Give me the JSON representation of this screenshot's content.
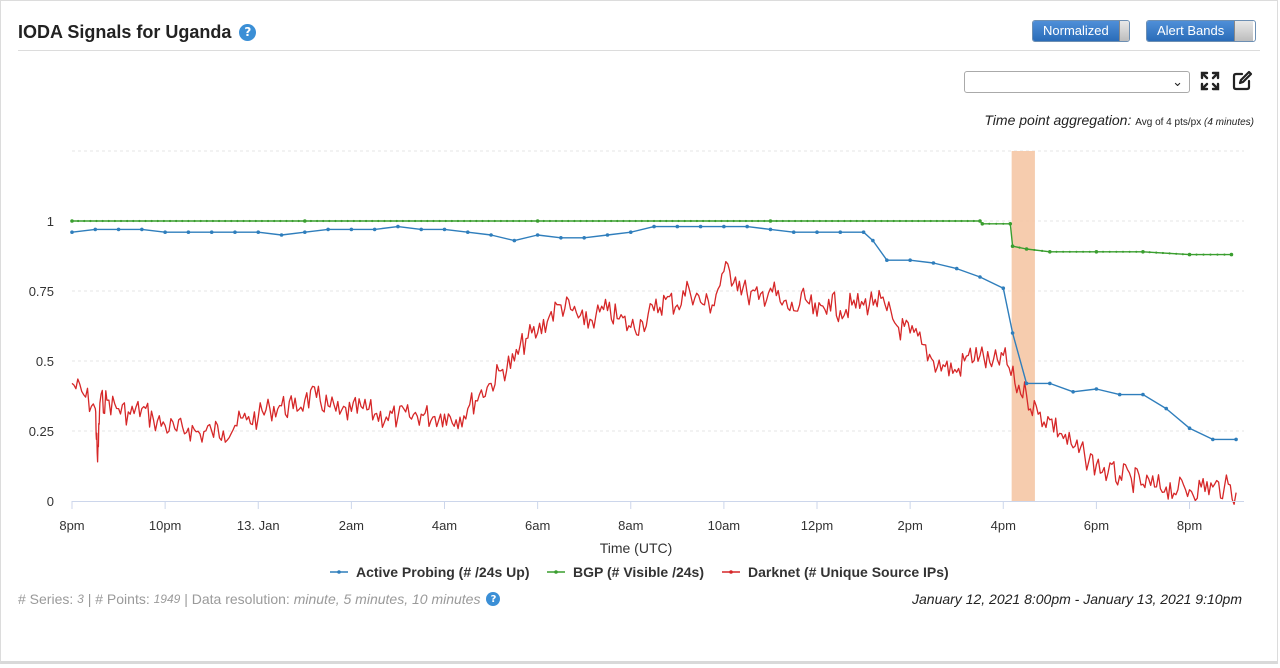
{
  "header": {
    "title": "IODA Signals for Uganda",
    "help_glyph": "?"
  },
  "toggles": {
    "normalized_label": "Normalized",
    "alert_bands_label": "Alert Bands"
  },
  "select": {
    "value": ""
  },
  "aggregation": {
    "label": "Time point aggregation:",
    "value_prefix": "Avg of 4 pts/px",
    "value_detail": "(4 minutes)"
  },
  "footer": {
    "series_label": "# Series:",
    "series_value": "3",
    "points_label": "# Points:",
    "points_value": "1949",
    "resolution_label": "Data resolution:",
    "resolution_value": "minute, 5 minutes, 10 minutes",
    "date_range": "January 12, 2021 8:00pm - January 13, 2021 9:10pm"
  },
  "colors": {
    "active_probing": "#2f7ebc",
    "bgp": "#3a9e2f",
    "darknet": "#d62728",
    "alert_band": "#f5c6a5"
  },
  "chart_data": {
    "type": "line",
    "xlabel": "Time (UTC)",
    "ylabel": "",
    "x_ticks": [
      {
        "hour": 0,
        "label": "8pm"
      },
      {
        "hour": 2,
        "label": "10pm"
      },
      {
        "hour": 4,
        "label": "13. Jan"
      },
      {
        "hour": 6,
        "label": "2am"
      },
      {
        "hour": 8,
        "label": "4am"
      },
      {
        "hour": 10,
        "label": "6am"
      },
      {
        "hour": 12,
        "label": "8am"
      },
      {
        "hour": 14,
        "label": "10am"
      },
      {
        "hour": 16,
        "label": "12pm"
      },
      {
        "hour": 18,
        "label": "2pm"
      },
      {
        "hour": 20,
        "label": "4pm"
      },
      {
        "hour": 22,
        "label": "6pm"
      },
      {
        "hour": 24,
        "label": "8pm"
      }
    ],
    "x_range_hours": [
      0,
      25.17
    ],
    "y_ticks": [
      0,
      0.25,
      0.5,
      0.75,
      1
    ],
    "y_tick_labels": [
      "0",
      "0.25",
      "0.5",
      "0.75",
      "1"
    ],
    "ylim": [
      0,
      1.25
    ],
    "grid": true,
    "legend_position": "bottom",
    "alert_band_hours": [
      20.18,
      20.68
    ],
    "series": [
      {
        "name": "Active Probing (# /24s Up)",
        "key": "active_probing",
        "markers": true,
        "x": [
          0,
          0.5,
          1,
          1.5,
          2,
          2.5,
          3,
          3.5,
          4,
          4.5,
          5,
          5.5,
          6,
          6.5,
          7,
          7.5,
          8,
          8.5,
          9,
          9.5,
          10,
          10.5,
          11,
          11.5,
          12,
          12.5,
          13,
          13.5,
          14,
          14.5,
          15,
          15.5,
          16,
          16.5,
          17,
          17.2,
          17.5,
          18,
          18.5,
          19,
          19.5,
          20,
          20.2,
          20.5,
          21,
          21.5,
          22,
          22.5,
          23,
          23.5,
          24,
          24.5,
          25
        ],
        "y": [
          0.96,
          0.97,
          0.97,
          0.97,
          0.96,
          0.96,
          0.96,
          0.96,
          0.96,
          0.95,
          0.96,
          0.97,
          0.97,
          0.97,
          0.98,
          0.97,
          0.97,
          0.96,
          0.95,
          0.93,
          0.95,
          0.94,
          0.94,
          0.95,
          0.96,
          0.98,
          0.98,
          0.98,
          0.98,
          0.98,
          0.97,
          0.96,
          0.96,
          0.96,
          0.96,
          0.93,
          0.86,
          0.86,
          0.85,
          0.83,
          0.8,
          0.76,
          0.6,
          0.42,
          0.42,
          0.39,
          0.4,
          0.38,
          0.38,
          0.33,
          0.26,
          0.22,
          0.22
        ]
      },
      {
        "name": "BGP (# Visible /24s)",
        "key": "bgp",
        "markers": true,
        "x": [
          0,
          5,
          10,
          15,
          19.5,
          19.55,
          20.15,
          20.2,
          20.5,
          21,
          22,
          23,
          24,
          24.9
        ],
        "y": [
          1.0,
          1.0,
          1.0,
          1.0,
          1.0,
          0.99,
          0.99,
          0.91,
          0.9,
          0.89,
          0.89,
          0.89,
          0.88,
          0.88
        ]
      },
      {
        "name": "Darknet (# Unique Source IPs)",
        "key": "darknet",
        "markers": false,
        "x": [
          0,
          0.25,
          0.5,
          0.55,
          0.6,
          0.75,
          1,
          1.25,
          1.5,
          1.75,
          2,
          2.25,
          2.5,
          2.75,
          3,
          3.25,
          3.5,
          3.75,
          4,
          4.25,
          4.5,
          4.75,
          5,
          5.25,
          5.5,
          5.75,
          6,
          6.25,
          6.5,
          6.75,
          7,
          7.25,
          7.5,
          7.75,
          8,
          8.25,
          8.5,
          8.75,
          9,
          9.25,
          9.5,
          9.75,
          10,
          10.25,
          10.5,
          10.75,
          11,
          11.25,
          11.5,
          11.75,
          12,
          12.25,
          12.5,
          12.75,
          13,
          13.25,
          13.5,
          13.75,
          14,
          14.25,
          14.5,
          14.75,
          15,
          15.25,
          15.5,
          15.75,
          16,
          16.25,
          16.5,
          16.75,
          17,
          17.25,
          17.5,
          17.75,
          18,
          18.25,
          18.5,
          18.75,
          19,
          19.25,
          19.5,
          19.75,
          20,
          20.25,
          20.5,
          20.75,
          21,
          21.25,
          21.5,
          21.75,
          22,
          22.25,
          22.5,
          22.75,
          23,
          23.25,
          23.5,
          23.75,
          24,
          24.25,
          24.5,
          24.75,
          25
        ],
        "y": [
          0.42,
          0.38,
          0.33,
          0.14,
          0.35,
          0.36,
          0.33,
          0.31,
          0.33,
          0.29,
          0.27,
          0.25,
          0.26,
          0.24,
          0.25,
          0.25,
          0.27,
          0.29,
          0.3,
          0.33,
          0.34,
          0.33,
          0.36,
          0.37,
          0.34,
          0.31,
          0.32,
          0.33,
          0.31,
          0.3,
          0.3,
          0.3,
          0.31,
          0.3,
          0.31,
          0.29,
          0.33,
          0.38,
          0.42,
          0.47,
          0.5,
          0.58,
          0.6,
          0.66,
          0.7,
          0.68,
          0.63,
          0.66,
          0.68,
          0.65,
          0.62,
          0.64,
          0.68,
          0.72,
          0.7,
          0.76,
          0.71,
          0.7,
          0.82,
          0.8,
          0.74,
          0.72,
          0.76,
          0.7,
          0.68,
          0.72,
          0.66,
          0.72,
          0.68,
          0.7,
          0.7,
          0.72,
          0.68,
          0.62,
          0.6,
          0.56,
          0.5,
          0.48,
          0.46,
          0.52,
          0.52,
          0.48,
          0.52,
          0.42,
          0.38,
          0.31,
          0.29,
          0.24,
          0.19,
          0.16,
          0.13,
          0.1,
          0.09,
          0.08,
          0.06,
          0.05,
          0.05,
          0.04,
          0.04,
          0.05,
          0.05,
          0.05,
          0.03
        ]
      }
    ]
  }
}
